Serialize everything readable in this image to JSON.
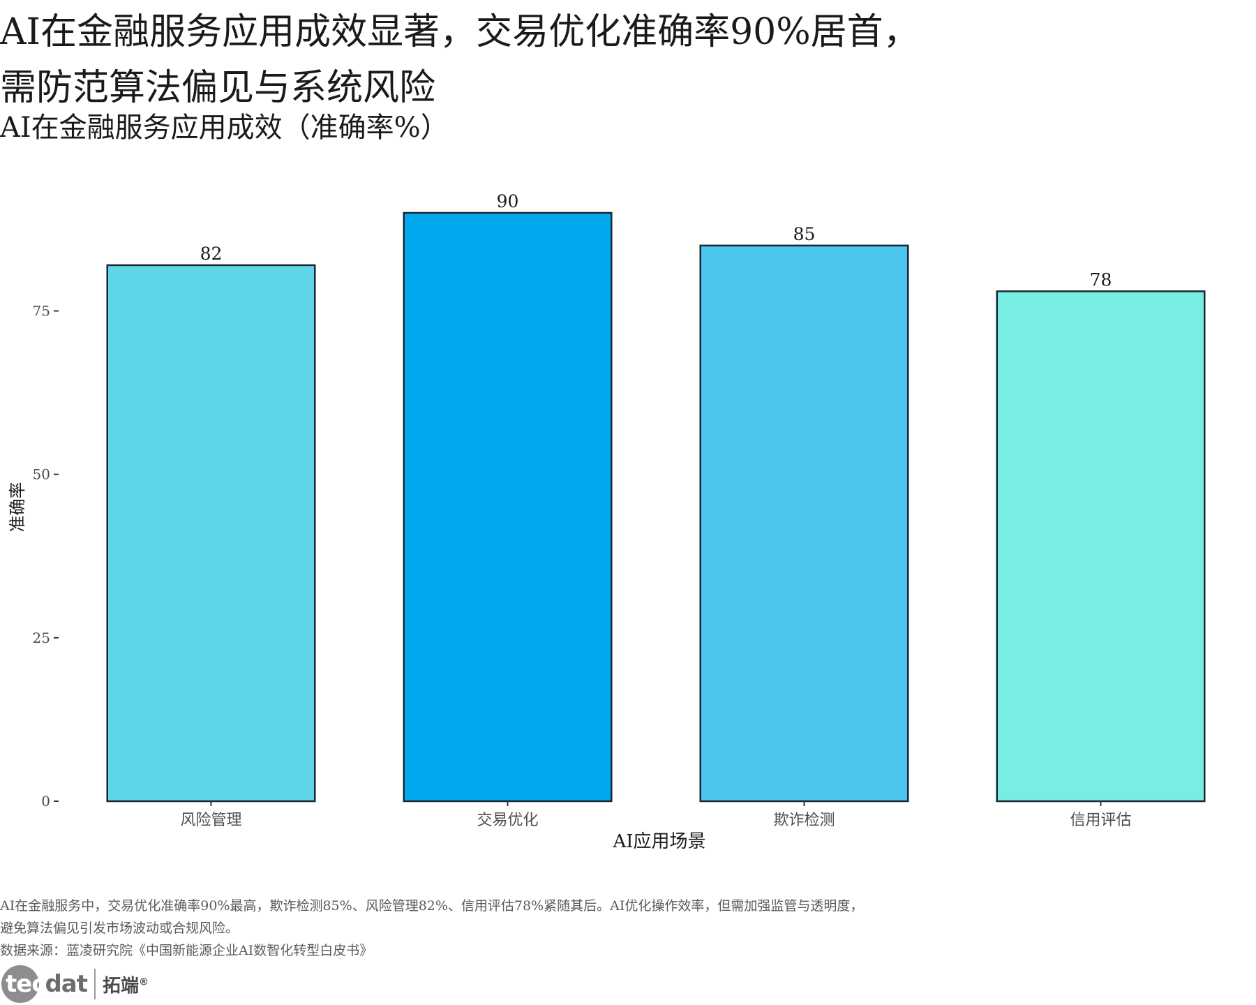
{
  "header": {
    "title_line1": "AI在金融服务应用成效显著，交易优化准确率90%居首，",
    "title_line2": "需防范算法偏见与系统风险",
    "subtitle": "AI在金融服务应用成效（准确率%）"
  },
  "chart_data": {
    "type": "bar",
    "categories": [
      "风险管理",
      "交易优化",
      "欺诈检测",
      "信用评估"
    ],
    "values": [
      82,
      90,
      85,
      78
    ],
    "colors": [
      "#5fd6e8",
      "#03a9ee",
      "#4cc6ee",
      "#78eee3"
    ],
    "xlabel": "AI应用场景",
    "ylabel": "准确率",
    "ylim": [
      0,
      90
    ],
    "yticks": [
      0,
      25,
      50,
      75
    ],
    "grid": false,
    "data_labels": true
  },
  "footer": {
    "note_line1": "AI在金融服务中，交易优化准确率90%最高，欺诈检测85%、风险管理82%、信用评估78%紧随其后。AI优化操作效率，但需加强监管与透明度，",
    "note_line2": "避免算法偏见引发市场波动或合规风险。",
    "source": "数据来源：蓝凌研究院《中国新能源企业AI数智化转型白皮书》"
  },
  "brand": {
    "logo_part1": "tec",
    "logo_part2": "dat",
    "name_cn": "拓端",
    "registered": "®"
  }
}
